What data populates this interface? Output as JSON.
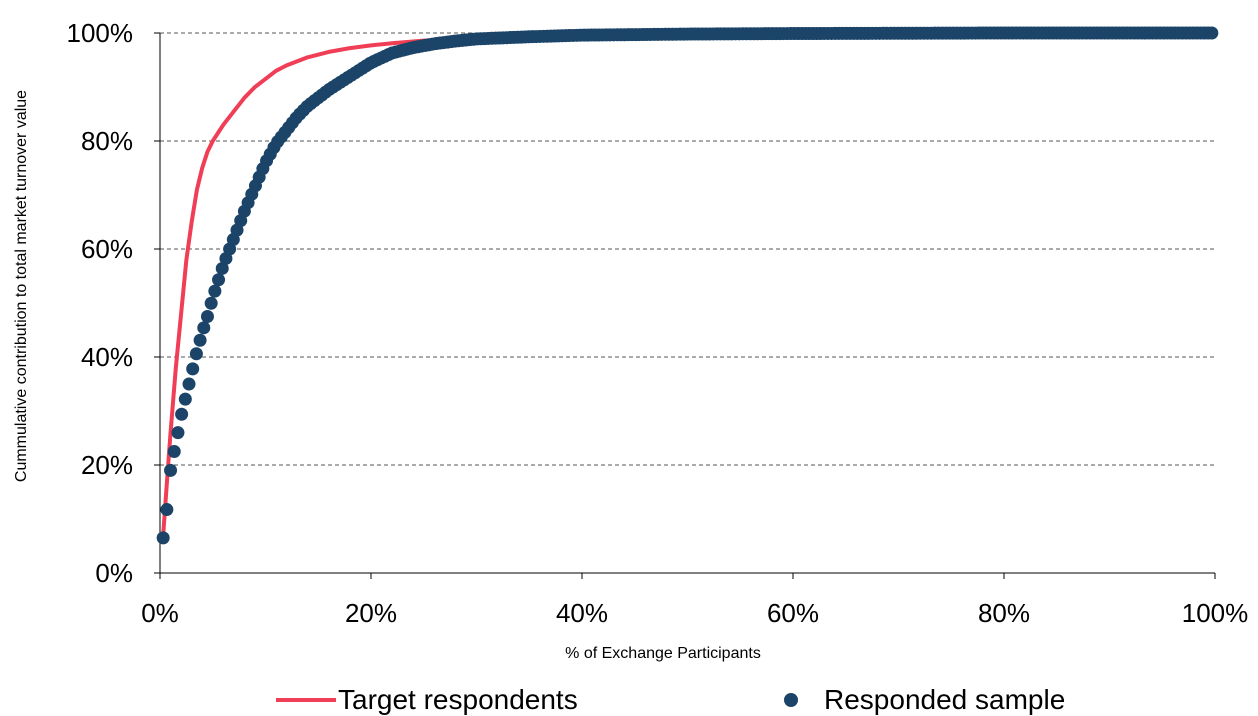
{
  "chart_data": {
    "type": "line",
    "xlabel": "% of Exchange Participants",
    "ylabel": "Cummulative contribution to total market turnover value",
    "xlim": [
      0,
      100
    ],
    "ylim": [
      0,
      100
    ],
    "x_ticks": [
      "0%",
      "20%",
      "40%",
      "60%",
      "80%",
      "100%"
    ],
    "y_ticks": [
      "0%",
      "20%",
      "40%",
      "60%",
      "80%",
      "100%"
    ],
    "grid": "horizontal-dashed",
    "legend": "bottom",
    "series": [
      {
        "name": "Target respondents",
        "style": "line",
        "color": "#ef3e55",
        "x": [
          0.3,
          0.7,
          1.0,
          1.5,
          2.0,
          2.5,
          3.0,
          3.5,
          4.0,
          4.5,
          5.0,
          5.5,
          6.0,
          7.0,
          8.0,
          9.0,
          10.0,
          11.0,
          12.0,
          14.0,
          16.0,
          18.0,
          20.0,
          22.0,
          25.0,
          30.0,
          40.0,
          100.0
        ],
        "y": [
          7,
          18,
          26,
          38,
          48,
          58,
          65,
          71,
          75,
          78,
          80,
          81.5,
          83,
          85.5,
          88,
          90,
          91.5,
          93,
          94,
          95.5,
          96.5,
          97.2,
          97.7,
          98.1,
          98.6,
          99.1,
          99.6,
          100
        ]
      },
      {
        "name": "Responded sample",
        "style": "markers",
        "color": "#1b4468",
        "x": [
          0.3,
          0.7,
          1.0,
          1.5,
          2.0,
          2.5,
          3.0,
          3.5,
          4.0,
          4.5,
          5.0,
          5.5,
          6.0,
          7.0,
          8.0,
          9.0,
          10.0,
          11.0,
          12.0,
          13.0,
          14.0,
          16.0,
          18.0,
          20.0,
          22.0,
          24.0,
          26.0,
          28.0,
          30.0,
          35.0,
          40.0,
          50.0,
          60.0,
          70.0,
          80.0,
          90.0,
          100.0
        ],
        "y": [
          6.5,
          12.5,
          19,
          24,
          29,
          33,
          37,
          41,
          44.5,
          47.5,
          51,
          54,
          57,
          62,
          67,
          71.5,
          76,
          79.5,
          82,
          84.5,
          86.5,
          89.5,
          92,
          94.5,
          96.3,
          97.3,
          98.0,
          98.5,
          98.9,
          99.3,
          99.6,
          99.8,
          99.9,
          99.95,
          100,
          100,
          100
        ]
      }
    ]
  }
}
